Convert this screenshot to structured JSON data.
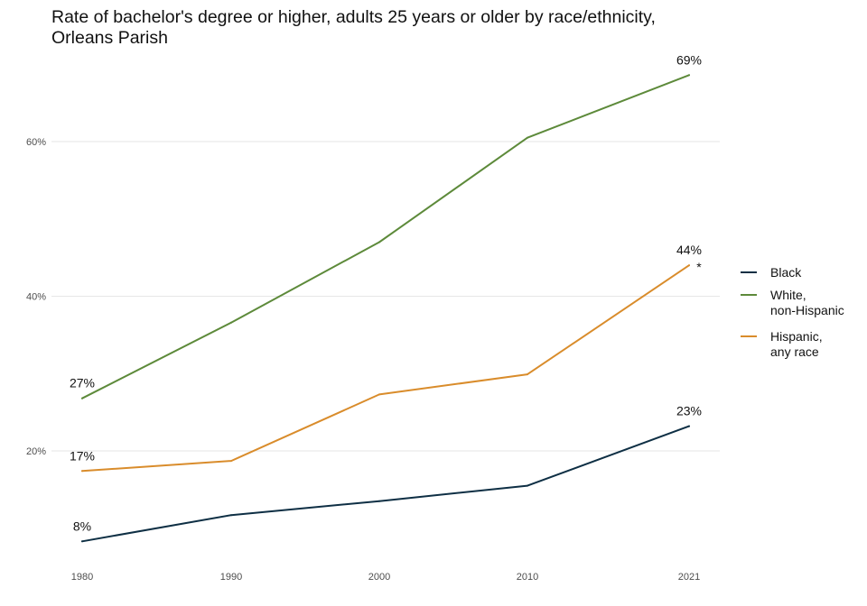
{
  "chart_data": {
    "type": "line",
    "title_lines": [
      "Rate of bachelor's degree or higher, adults 25 years or older by race/ethnicity,",
      "Orleans Parish"
    ],
    "xlabel": "",
    "ylabel": "",
    "x": [
      "1980",
      "1990",
      "2000",
      "2010",
      "2021"
    ],
    "ylim": [
      0.08,
      0.69
    ],
    "y_ticks": [
      {
        "value": 0.2,
        "label": "20%"
      },
      {
        "value": 0.4,
        "label": "40%"
      },
      {
        "value": 0.6,
        "label": "60%"
      }
    ],
    "grid": true,
    "legend_position": "right",
    "series": [
      {
        "name": "Black",
        "legend_lines": [
          "Black"
        ],
        "color": "#0e2f44",
        "values": [
          0.083,
          0.117,
          0.135,
          0.155,
          0.232
        ]
      },
      {
        "name": "White, non-Hispanic",
        "legend_lines": [
          "White,",
          "non-Hispanic"
        ],
        "color": "#5d8a3a",
        "values": [
          0.268,
          0.366,
          0.47,
          0.605,
          0.686
        ]
      },
      {
        "name": "Hispanic, any race",
        "legend_lines": [
          "Hispanic,",
          "any race"
        ],
        "color": "#d98c2b",
        "values": [
          0.174,
          0.187,
          0.273,
          0.299,
          0.44
        ]
      }
    ],
    "data_labels": [
      {
        "series": 0,
        "index": 0,
        "text": "8%"
      },
      {
        "series": 0,
        "index": 4,
        "text": "23%"
      },
      {
        "series": 1,
        "index": 0,
        "text": "27%"
      },
      {
        "series": 1,
        "index": 4,
        "text": "69%"
      },
      {
        "series": 2,
        "index": 0,
        "text": "17%"
      },
      {
        "series": 2,
        "index": 4,
        "text": "44%"
      }
    ],
    "annotations": [
      {
        "series": 2,
        "index": 4,
        "text": "*"
      }
    ]
  }
}
